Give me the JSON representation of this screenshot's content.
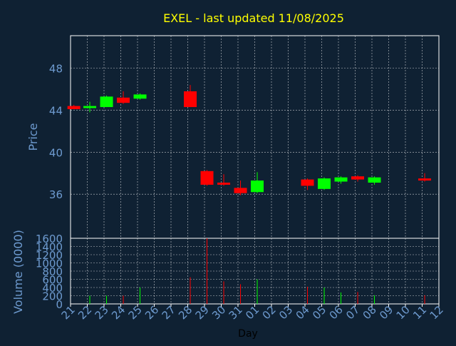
{
  "chart_data": {
    "type": "candlestick",
    "title": "EXEL - last updated 11/08/2025",
    "xlabel": "Day",
    "ylabel": "Price",
    "volume_ylabel": "Volume (0000)",
    "x_tick_labels": [
      "21",
      "22",
      "23",
      "24",
      "25",
      "26",
      "27",
      "28",
      "29",
      "30",
      "31",
      "01",
      "02",
      "03",
      "04",
      "05",
      "06",
      "07",
      "08",
      "09",
      "10",
      "11",
      "12"
    ],
    "price_ylim": [
      31.8,
      51.1
    ],
    "price_ticks": [
      36,
      40,
      44,
      48
    ],
    "volume_ylim": [
      0,
      1600
    ],
    "volume_ticks": [
      0,
      200,
      400,
      600,
      800,
      1000,
      1200,
      1400,
      1600
    ],
    "grid": true,
    "colors": {
      "background": "#0f2133",
      "up": "#00ff00",
      "down": "#ff0000",
      "title": "#ffff00",
      "axis_text": "#6e9bd0",
      "grid": "#ffffff"
    },
    "candles": [
      {
        "x": 0.2,
        "open": 44.4,
        "close": 44.1,
        "high": 44.5,
        "low": 44.1,
        "volume": 0
      },
      {
        "x": 1.15,
        "open": 44.2,
        "close": 44.4,
        "high": 44.8,
        "low": 43.8,
        "volume": 200
      },
      {
        "x": 2.15,
        "open": 44.3,
        "close": 45.3,
        "high": 45.4,
        "low": 44.3,
        "volume": 200
      },
      {
        "x": 3.15,
        "open": 45.2,
        "close": 44.7,
        "high": 45.8,
        "low": 44.6,
        "volume": 200
      },
      {
        "x": 4.15,
        "open": 45.1,
        "close": 45.5,
        "high": 45.6,
        "low": 45.0,
        "volume": 400
      },
      {
        "x": 7.15,
        "open": 45.8,
        "close": 44.3,
        "high": 46.4,
        "low": 44.3,
        "volume": 650
      },
      {
        "x": 8.15,
        "open": 38.2,
        "close": 36.9,
        "high": 38.3,
        "low": 36.8,
        "volume": 1600
      },
      {
        "x": 9.15,
        "open": 37.1,
        "close": 36.9,
        "high": 37.9,
        "low": 36.8,
        "volume": 550
      },
      {
        "x": 10.15,
        "open": 36.6,
        "close": 36.1,
        "high": 37.3,
        "low": 35.9,
        "volume": 480
      },
      {
        "x": 11.15,
        "open": 36.2,
        "close": 37.3,
        "high": 38.1,
        "low": 36.1,
        "volume": 600
      },
      {
        "x": 14.15,
        "open": 37.4,
        "close": 36.8,
        "high": 37.5,
        "low": 36.4,
        "volume": 420
      },
      {
        "x": 15.15,
        "open": 36.5,
        "close": 37.5,
        "high": 37.6,
        "low": 36.4,
        "volume": 400
      },
      {
        "x": 16.15,
        "open": 37.2,
        "close": 37.6,
        "high": 37.7,
        "low": 37.0,
        "volume": 280
      },
      {
        "x": 17.15,
        "open": 37.7,
        "close": 37.4,
        "high": 37.8,
        "low": 37.2,
        "volume": 290
      },
      {
        "x": 18.15,
        "open": 37.1,
        "close": 37.6,
        "high": 37.7,
        "low": 36.9,
        "volume": 210
      },
      {
        "x": 21.15,
        "open": 37.5,
        "close": 37.3,
        "high": 38.0,
        "low": 37.2,
        "volume": 210
      }
    ]
  }
}
